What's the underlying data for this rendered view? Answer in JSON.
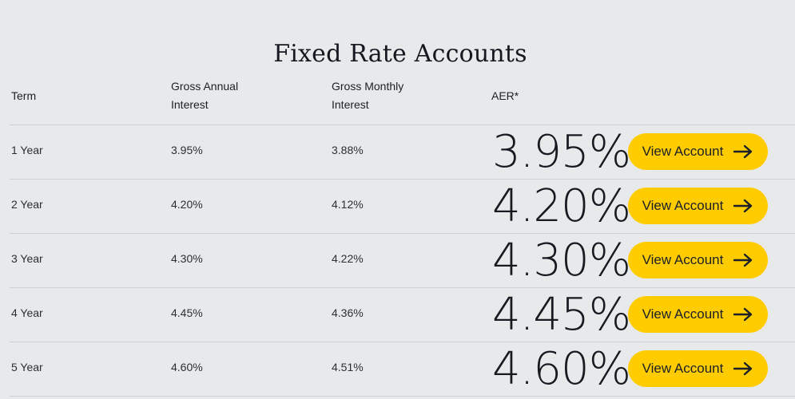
{
  "page": {
    "title": "Fixed Rate Accounts"
  },
  "table": {
    "headers": {
      "term": "Term",
      "gross_annual": [
        "Gross Annual",
        "Interest"
      ],
      "gross_monthly": [
        "Gross Monthly",
        "Interest"
      ],
      "aer": "AER*"
    },
    "rows": [
      {
        "term": "1 Year",
        "gross_annual": "3.95%",
        "gross_monthly": "3.88%",
        "aer": "3.95%",
        "button": "View Account"
      },
      {
        "term": "2 Year",
        "gross_annual": "4.20%",
        "gross_monthly": "4.12%",
        "aer": "4.20%",
        "button": "View Account"
      },
      {
        "term": "3 Year",
        "gross_annual": "4.30%",
        "gross_monthly": "4.22%",
        "aer": "4.30%",
        "button": "View Account"
      },
      {
        "term": "4 Year",
        "gross_annual": "4.45%",
        "gross_monthly": "4.36%",
        "aer": "4.45%",
        "button": "View Account"
      },
      {
        "term": "5 Year",
        "gross_annual": "4.60%",
        "gross_monthly": "4.51%",
        "aer": "4.60%",
        "button": "View Account"
      }
    ]
  },
  "icons": {
    "button_icon": "arrow-right-icon"
  },
  "colors": {
    "background": "#e8e9ea",
    "button": "#ffcc00",
    "text": "#1b1f27",
    "divider": "#cfd1d4"
  }
}
